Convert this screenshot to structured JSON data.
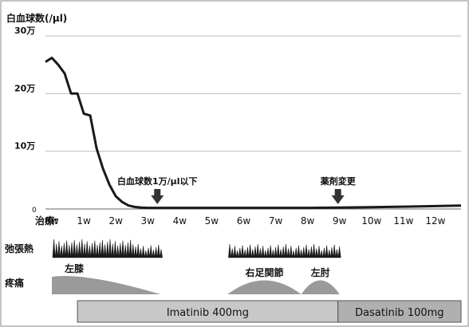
{
  "chart_data": {
    "type": "line",
    "title": "白血球数(/μl)",
    "x_label_prefix": "治療:",
    "x_ticks": [
      "0w",
      "1w",
      "2w",
      "3w",
      "4w",
      "5w",
      "6w",
      "7w",
      "8w",
      "9w",
      "10w",
      "11w",
      "12w"
    ],
    "y_ticks": [
      "30万",
      "20万",
      "10万",
      "0"
    ],
    "y_values": [
      300000,
      200000,
      100000,
      0
    ],
    "ylim": [
      0,
      300000
    ],
    "xlim": [
      -0.2,
      12.8
    ],
    "grid": true,
    "series": [
      {
        "color": "#1a1a1a",
        "x": [
          -0.2,
          0.0,
          0.2,
          0.4,
          0.6,
          0.8,
          1.0,
          1.2,
          1.4,
          1.6,
          1.8,
          2.0,
          2.2,
          2.4,
          2.6,
          2.8,
          3.0,
          3.3,
          3.6,
          4.0,
          5.0,
          6.0,
          7.0,
          8.0,
          9.0,
          10.0,
          11.0,
          12.0,
          12.8
        ],
        "y": [
          255000,
          262000,
          250000,
          235000,
          200000,
          200000,
          165000,
          162000,
          105000,
          70000,
          42000,
          22000,
          12000,
          6000,
          3500,
          2500,
          2000,
          2000,
          2000,
          2000,
          2000,
          2000,
          2000,
          2000,
          2500,
          3000,
          4000,
          5000,
          6000
        ]
      }
    ],
    "annotations": [
      {
        "text": "白血球数1万/μl以下",
        "x": 3.3
      },
      {
        "text": "薬剤変更",
        "x": 8.95
      }
    ],
    "symptoms": {
      "fever": {
        "label": "弛張熱",
        "periods": [
          [
            0.0,
            3.4
          ],
          [
            5.5,
            9.0
          ]
        ]
      },
      "pain": {
        "label": "疼痛",
        "periods": [
          {
            "name": "左膝",
            "range": [
              0.0,
              3.4
            ]
          },
          {
            "name": "右足関節",
            "range": [
              5.5,
              7.8
            ]
          },
          {
            "name": "左肘",
            "range": [
              7.8,
              9.0
            ]
          }
        ]
      }
    },
    "treatment": [
      {
        "label": "Imatinib 400mg",
        "range": [
          0.8,
          8.95
        ],
        "color": "#c8c8c8"
      },
      {
        "label": "Dasatinib 100mg",
        "range": [
          8.95,
          12.8
        ],
        "color": "#b0b0b0"
      }
    ]
  }
}
